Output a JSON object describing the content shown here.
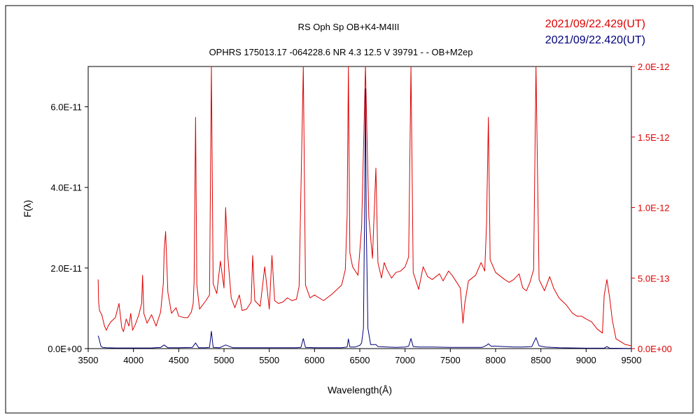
{
  "chart_data": {
    "type": "line",
    "title": "RS Oph    Sp OB+K4-M4III",
    "subtitle": "OPHRS 175013.17 -064228.6 NR 4.3 12.5 V 39791 - - OB+M2ep",
    "xlabel": "Wavelength(Å)",
    "ylabel": "F(λ)",
    "xlim": [
      3500,
      9500
    ],
    "ylim_left": [
      0,
      7e-11
    ],
    "ylim_right": [
      0,
      2e-12
    ],
    "x_ticks": [
      "3500",
      "4000",
      "4500",
      "5000",
      "5500",
      "6000",
      "6500",
      "7000",
      "7500",
      "8000",
      "8500",
      "9000",
      "9500"
    ],
    "y_ticks_left": [
      "0.0E+00",
      "2.0E-11",
      "4.0E-11",
      "6.0E-11"
    ],
    "y_ticks_right": [
      "0.0E+00",
      "5.0E-13",
      "1.0E-12",
      "1.5E-12",
      "2.0E-12"
    ],
    "grid": false,
    "legend_position": "top-right",
    "series": [
      {
        "name": "2021/09/22.429(UT)",
        "axis": "right",
        "color": "#dd0000",
        "x": [
          3610,
          3615,
          3625,
          3650,
          3680,
          3700,
          3720,
          3750,
          3800,
          3840,
          3870,
          3890,
          3920,
          3950,
          3970,
          3990,
          4020,
          4060,
          4090,
          4101,
          4115,
          4150,
          4200,
          4250,
          4300,
          4330,
          4340,
          4355,
          4380,
          4420,
          4471,
          4500,
          4560,
          4600,
          4640,
          4660,
          4670,
          4686,
          4700,
          4730,
          4800,
          4840,
          4861,
          4880,
          4920,
          4960,
          5000,
          5018,
          5040,
          5080,
          5120,
          5169,
          5200,
          5250,
          5300,
          5317,
          5340,
          5400,
          5450,
          5500,
          5530,
          5560,
          5600,
          5650,
          5700,
          5750,
          5800,
          5830,
          5876,
          5900,
          5950,
          6000,
          6100,
          6200,
          6300,
          6340,
          6360,
          6374,
          6390,
          6420,
          6480,
          6520,
          6563,
          6600,
          6640,
          6678,
          6700,
          6740,
          6770,
          6800,
          6850,
          6900,
          6950,
          7000,
          7040,
          7065,
          7090,
          7150,
          7200,
          7250,
          7300,
          7380,
          7420,
          7480,
          7520,
          7580,
          7610,
          7640,
          7660,
          7700,
          7780,
          7840,
          7880,
          7900,
          7920,
          7940,
          8000,
          8100,
          8150,
          8200,
          8260,
          8300,
          8340,
          8380,
          8420,
          8446,
          8480,
          8540,
          8598,
          8640,
          8700,
          8780,
          8850,
          8900,
          8950,
          9000,
          9060,
          9120,
          9180,
          9200,
          9229,
          9260,
          9290,
          9330,
          9380,
          9430,
          9500
        ],
        "y": [
          4.9e-13,
          3.3e-13,
          2.7e-13,
          2.4e-13,
          1.6e-13,
          1.3e-13,
          1.6e-13,
          1.9e-13,
          2.2e-13,
          3.2e-13,
          1.5e-13,
          1.2e-13,
          2.1e-13,
          1.6e-13,
          2.5e-13,
          1.3e-13,
          1.7e-13,
          2.4e-13,
          3.2e-13,
          5.2e-13,
          2.5e-13,
          1.8e-13,
          2.4e-13,
          1.6e-13,
          2.6e-13,
          4.6e-13,
          7e-13,
          8.3e-13,
          4e-13,
          2.5e-13,
          2.9e-13,
          2.3e-13,
          2.2e-13,
          2.2e-13,
          2.6e-13,
          3.2e-13,
          4.8e-13,
          1.64e-12,
          4.5e-13,
          2.8e-13,
          3.4e-13,
          3.8e-13,
          2e-12,
          4.6e-13,
          3.9e-13,
          6.2e-13,
          4.3e-13,
          1e-12,
          6.7e-13,
          3.6e-13,
          2.9e-13,
          3.8e-13,
          2.7e-13,
          2.8e-13,
          3.3e-13,
          6.6e-13,
          3.4e-13,
          3e-13,
          5.8e-13,
          2.8e-13,
          6.6e-13,
          3.4e-13,
          3.2e-13,
          3.3e-13,
          3.6e-13,
          3.4e-13,
          3.5e-13,
          4.4e-13,
          2e-12,
          4.5e-13,
          3.6e-13,
          3.8e-13,
          3.4e-13,
          3.9e-13,
          4.5e-13,
          5.6e-13,
          9.4e-13,
          2e-12,
          6.8e-13,
          5.8e-13,
          5.2e-13,
          8.6e-13,
          2e-12,
          9.3e-13,
          6.4e-13,
          1.28e-12,
          6.1e-13,
          5e-13,
          6.1e-13,
          5.6e-13,
          5e-13,
          5.4e-13,
          5.5e-13,
          5.8e-13,
          6.5e-13,
          2e-12,
          5.4e-13,
          4.2e-13,
          5.8e-13,
          5.1e-13,
          4.9e-13,
          5.3e-13,
          4.8e-13,
          5.5e-13,
          5.2e-13,
          4.6e-13,
          4.3e-13,
          1.8e-13,
          3.2e-13,
          4.8e-13,
          5.2e-13,
          6.1e-13,
          5.5e-13,
          8.9e-13,
          1.64e-12,
          6.3e-13,
          5.4e-13,
          4.9e-13,
          4.7e-13,
          4.9e-13,
          5.3e-13,
          4.3e-13,
          4.1e-13,
          4.7e-13,
          5.6e-13,
          2e-12,
          4.9e-13,
          4.1e-13,
          5.1e-13,
          4.3e-13,
          3.6e-13,
          3.1e-13,
          2.5e-13,
          2.3e-13,
          2.3e-13,
          2.1e-13,
          1.9e-13,
          1.4e-13,
          1.1e-13,
          3.8e-13,
          4.9e-13,
          3.6e-13,
          2e-13,
          7e-14,
          5e-14,
          3e-14,
          2e-14
        ]
      },
      {
        "name": "2021/09/22.420(UT)",
        "axis": "left",
        "color": "#00007a",
        "x": [
          3610,
          3620,
          3640,
          3660,
          3700,
          3800,
          3900,
          4000,
          4100,
          4200,
          4300,
          4340,
          4380,
          4500,
          4650,
          4686,
          4720,
          4800,
          4840,
          4861,
          4880,
          4950,
          5018,
          5100,
          5200,
          5300,
          5400,
          5500,
          5600,
          5700,
          5800,
          5850,
          5876,
          5900,
          6000,
          6100,
          6200,
          6300,
          6360,
          6374,
          6390,
          6450,
          6500,
          6520,
          6540,
          6555,
          6563,
          6572,
          6590,
          6620,
          6678,
          6700,
          6800,
          6900,
          7000,
          7040,
          7065,
          7090,
          7150,
          7300,
          7500,
          7700,
          7850,
          7900,
          7920,
          7950,
          8000,
          8200,
          8300,
          8400,
          8446,
          8480,
          8550,
          8700,
          9000,
          9200,
          9229,
          9260,
          9500
        ],
        "y": [
          3.2e-12,
          2.5e-12,
          6e-13,
          3e-13,
          2e-13,
          1.5e-13,
          1.5e-13,
          1.5e-13,
          1.5e-13,
          1.5e-13,
          3e-13,
          9e-13,
          2e-13,
          2e-13,
          3e-13,
          1.4e-12,
          2e-13,
          2e-13,
          3e-13,
          4.3e-12,
          3e-13,
          2e-13,
          9e-13,
          2e-13,
          2e-13,
          2e-13,
          2e-13,
          2e-13,
          2e-13,
          2e-13,
          2e-13,
          3e-13,
          2.5e-12,
          3e-13,
          2e-13,
          2e-13,
          2e-13,
          2e-13,
          4e-13,
          2.4e-12,
          4e-13,
          4e-13,
          8e-13,
          1.4e-12,
          5e-12,
          3.8e-11,
          6.45e-11,
          3e-11,
          5e-12,
          1e-12,
          1e-12,
          5e-13,
          4e-13,
          3e-13,
          4e-13,
          6e-13,
          2.5e-12,
          5e-13,
          4e-13,
          4e-13,
          3e-13,
          3e-13,
          3e-13,
          8e-13,
          1.2e-12,
          6e-13,
          6e-13,
          4e-13,
          4e-13,
          5e-13,
          2.7e-12,
          7e-13,
          4e-13,
          2e-13,
          1e-13,
          1e-13,
          5e-13,
          1e-13,
          5e-14
        ]
      }
    ]
  }
}
